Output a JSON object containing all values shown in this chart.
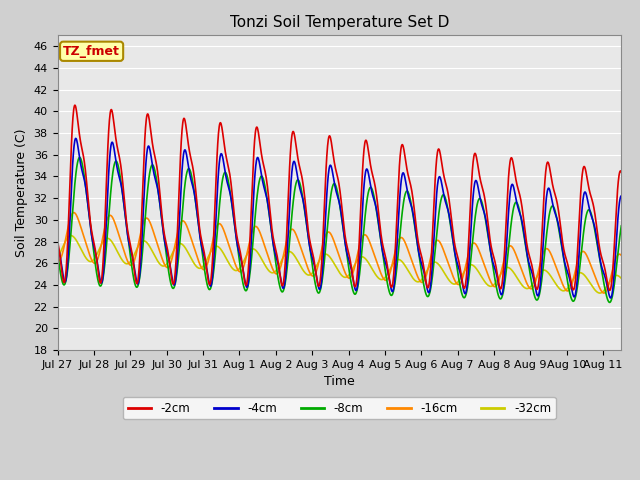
{
  "title": "Tonzi Soil Temperature Set D",
  "xlabel": "Time",
  "ylabel": "Soil Temperature (C)",
  "ylim": [
    18,
    47
  ],
  "yticks": [
    18,
    20,
    22,
    24,
    26,
    28,
    30,
    32,
    34,
    36,
    38,
    40,
    42,
    44,
    46
  ],
  "series_labels": [
    "-2cm",
    "-4cm",
    "-8cm",
    "-16cm",
    "-32cm"
  ],
  "series_colors": [
    "#dd0000",
    "#0000cc",
    "#00aa00",
    "#ff8800",
    "#cccc00"
  ],
  "background_color": "#e8e8e8",
  "annotation_text": "TZ_fmet",
  "annotation_bg": "#ffffaa",
  "annotation_border": "#aa8800",
  "title_fontsize": 11,
  "axis_label_fontsize": 9,
  "tick_fontsize": 8,
  "total_days": 15.5,
  "xtick_positions": [
    0,
    1,
    2,
    3,
    4,
    5,
    6,
    7,
    8,
    9,
    10,
    11,
    12,
    13,
    14,
    15
  ],
  "xtick_labels": [
    "Jul 27",
    "Jul 28",
    "Jul 29",
    "Jul 30",
    "Jul 31",
    "Aug 1",
    "Aug 2",
    "Aug 3",
    "Aug 4",
    "Aug 5",
    "Aug 6",
    "Aug 7",
    "Aug 8",
    "Aug 9",
    "Aug 10",
    "Aug 11"
  ],
  "figwidth": 6.4,
  "figheight": 4.8,
  "dpi": 100
}
